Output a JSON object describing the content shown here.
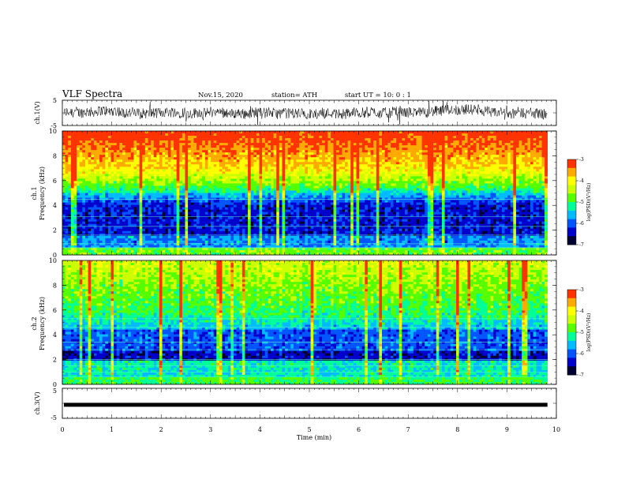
{
  "header": {
    "title": "VLF Spectra",
    "date": "Nov.15, 2020",
    "station": "station= ATH",
    "start": "start UT = 10: 0 : 1"
  },
  "chart_data": [
    {
      "type": "line",
      "name": "ch1-waveform",
      "ylabel": "ch.1(V)",
      "ylim": [
        -5,
        5
      ],
      "yticks": [
        "5",
        "-5"
      ],
      "xlim": [
        0,
        10
      ],
      "color": "#000000"
    },
    {
      "type": "heatmap",
      "name": "ch1-spectrogram",
      "ylabel_line1": "ch.1",
      "ylabel_line2": "Frequency (kHz)",
      "ylim": [
        0,
        10
      ],
      "yticks": [
        "0",
        "2",
        "4",
        "6",
        "8",
        "10"
      ],
      "xlim": [
        0,
        10
      ],
      "colorbar": {
        "label": "log(PSD)(V²/Hz)",
        "range": [
          -7,
          -3
        ],
        "ticks": [
          "-3",
          "-4",
          "-5",
          "-6",
          "-7"
        ]
      }
    },
    {
      "type": "heatmap",
      "name": "ch2-spectrogram",
      "ylabel_line1": "ch.2",
      "ylabel_line2": "Frequency (kHz)",
      "ylim": [
        0,
        10
      ],
      "yticks": [
        "0",
        "2",
        "4",
        "6",
        "8",
        "10"
      ],
      "xlim": [
        0,
        10
      ],
      "colorbar": {
        "label": "log(PSD)(V²/Hz)",
        "range": [
          -7,
          -3
        ],
        "ticks": [
          "-3",
          "-4",
          "-5",
          "-6",
          "-7"
        ]
      }
    },
    {
      "type": "line",
      "name": "ch3-waveform",
      "ylabel": "ch.3(V)",
      "ylim": [
        -5,
        5
      ],
      "yticks": [
        "5",
        "-5"
      ],
      "xlim": [
        0,
        10
      ],
      "level": -0.5,
      "color": "#000000"
    }
  ],
  "xaxis": {
    "label": "Time (min)",
    "ticks": [
      "0",
      "1",
      "2",
      "3",
      "4",
      "5",
      "6",
      "7",
      "8",
      "9",
      "10"
    ],
    "data_end_min": 9.82
  },
  "colormap": [
    "#000033",
    "#0000cc",
    "#0055ff",
    "#00bbff",
    "#00ff99",
    "#55ff00",
    "#ccff00",
    "#ffff00",
    "#ffaa00",
    "#ff3300",
    "#ffffff"
  ]
}
